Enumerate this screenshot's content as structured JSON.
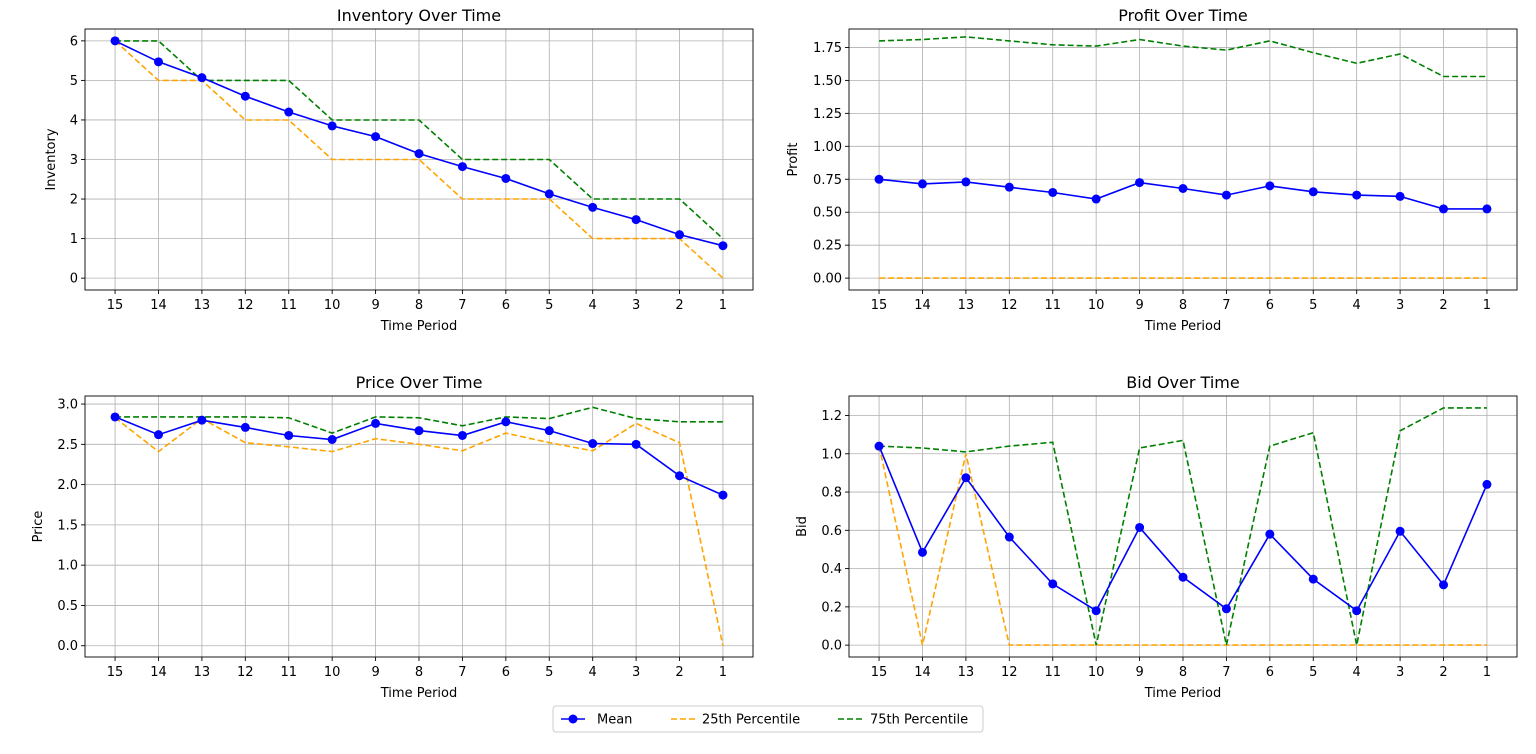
{
  "legend": {
    "placement": "bottom-center",
    "items": [
      {
        "key": "mean",
        "label": "Mean",
        "color": "#0000ff",
        "style": "solid-marker"
      },
      {
        "key": "p25",
        "label": "25th Percentile",
        "color": "#ffa500",
        "style": "dashed"
      },
      {
        "key": "p75",
        "label": "75th Percentile",
        "color": "#008000",
        "style": "dashed"
      }
    ]
  },
  "chart_data": [
    {
      "type": "line",
      "title": "Inventory Over Time",
      "xlabel": "Time Period",
      "ylabel": "Inventory",
      "categories": [
        "15",
        "14",
        "13",
        "12",
        "11",
        "10",
        "9",
        "8",
        "7",
        "6",
        "5",
        "4",
        "3",
        "2",
        "1"
      ],
      "ylim": [
        -0.3,
        6.3
      ],
      "yticks": [
        0,
        1,
        2,
        3,
        4,
        5,
        6
      ],
      "ytick_labels": [
        "0",
        "1",
        "2",
        "3",
        "4",
        "5",
        "6"
      ],
      "grid": true,
      "series": [
        {
          "name": "Mean",
          "key": "mean",
          "values": [
            6.0,
            5.47,
            5.07,
            4.6,
            4.2,
            3.85,
            3.58,
            3.15,
            2.82,
            2.52,
            2.13,
            1.79,
            1.48,
            1.1,
            0.82
          ]
        },
        {
          "name": "25th Percentile",
          "key": "p25",
          "values": [
            6,
            5,
            5,
            4,
            4,
            3,
            3,
            3,
            2,
            2,
            2,
            1,
            1,
            1,
            0
          ]
        },
        {
          "name": "75th Percentile",
          "key": "p75",
          "values": [
            6,
            6,
            5,
            5,
            5,
            4,
            4,
            4,
            3,
            3,
            3,
            2,
            2,
            2,
            1
          ]
        }
      ]
    },
    {
      "type": "line",
      "title": "Profit Over Time",
      "xlabel": "Time Period",
      "ylabel": "Profit",
      "categories": [
        "15",
        "14",
        "13",
        "12",
        "11",
        "10",
        "9",
        "8",
        "7",
        "6",
        "5",
        "4",
        "3",
        "2",
        "1"
      ],
      "ylim": [
        -0.09,
        1.89
      ],
      "yticks": [
        0,
        0.25,
        0.5,
        0.75,
        1.0,
        1.25,
        1.5,
        1.75
      ],
      "ytick_labels": [
        "0.00",
        "0.25",
        "0.50",
        "0.75",
        "1.00",
        "1.25",
        "1.50",
        "1.75"
      ],
      "grid": true,
      "series": [
        {
          "name": "Mean",
          "key": "mean",
          "values": [
            0.75,
            0.715,
            0.73,
            0.69,
            0.65,
            0.6,
            0.725,
            0.68,
            0.63,
            0.7,
            0.655,
            0.63,
            0.62,
            0.525,
            0.525
          ]
        },
        {
          "name": "25th Percentile",
          "key": "p25",
          "values": [
            0,
            0,
            0,
            0,
            0,
            0,
            0,
            0,
            0,
            0,
            0,
            0,
            0,
            0,
            0
          ]
        },
        {
          "name": "75th Percentile",
          "key": "p75",
          "values": [
            1.8,
            1.81,
            1.83,
            1.8,
            1.77,
            1.76,
            1.81,
            1.76,
            1.73,
            1.8,
            1.71,
            1.63,
            1.7,
            1.53,
            1.53
          ]
        }
      ]
    },
    {
      "type": "line",
      "title": "Price Over Time",
      "xlabel": "Time Period",
      "ylabel": "Price",
      "categories": [
        "15",
        "14",
        "13",
        "12",
        "11",
        "10",
        "9",
        "8",
        "7",
        "6",
        "5",
        "4",
        "3",
        "2",
        "1"
      ],
      "ylim": [
        -0.14,
        3.1
      ],
      "yticks": [
        0,
        0.5,
        1.0,
        1.5,
        2.0,
        2.5,
        3.0
      ],
      "ytick_labels": [
        "0.0",
        "0.5",
        "1.0",
        "1.5",
        "2.0",
        "2.5",
        "3.0"
      ],
      "grid": true,
      "series": [
        {
          "name": "Mean",
          "key": "mean",
          "values": [
            2.84,
            2.62,
            2.8,
            2.71,
            2.61,
            2.56,
            2.76,
            2.67,
            2.61,
            2.78,
            2.67,
            2.51,
            2.5,
            2.11,
            1.87
          ]
        },
        {
          "name": "25th Percentile",
          "key": "p25",
          "values": [
            2.83,
            2.41,
            2.82,
            2.52,
            2.47,
            2.41,
            2.57,
            2.5,
            2.42,
            2.64,
            2.52,
            2.42,
            2.76,
            2.52,
            0.0
          ]
        },
        {
          "name": "75th Percentile",
          "key": "p75",
          "values": [
            2.84,
            2.84,
            2.84,
            2.84,
            2.83,
            2.64,
            2.84,
            2.83,
            2.73,
            2.84,
            2.82,
            2.96,
            2.82,
            2.78,
            2.78
          ]
        }
      ]
    },
    {
      "type": "line",
      "title": "Bid Over Time",
      "xlabel": "Time Period",
      "ylabel": "Bid",
      "categories": [
        "15",
        "14",
        "13",
        "12",
        "11",
        "10",
        "9",
        "8",
        "7",
        "6",
        "5",
        "4",
        "3",
        "2",
        "1"
      ],
      "ylim": [
        -0.062,
        1.302
      ],
      "yticks": [
        0,
        0.2,
        0.4,
        0.6,
        0.8,
        1.0,
        1.2
      ],
      "ytick_labels": [
        "0.0",
        "0.2",
        "0.4",
        "0.6",
        "0.8",
        "1.0",
        "1.2"
      ],
      "grid": true,
      "series": [
        {
          "name": "Mean",
          "key": "mean",
          "values": [
            1.04,
            0.485,
            0.875,
            0.565,
            0.32,
            0.18,
            0.615,
            0.355,
            0.19,
            0.58,
            0.345,
            0.18,
            0.595,
            0.315,
            0.84
          ]
        },
        {
          "name": "25th Percentile",
          "key": "p25",
          "values": [
            1.04,
            0,
            1.0,
            0,
            0,
            0,
            0,
            0,
            0,
            0,
            0,
            0,
            0,
            0,
            0
          ]
        },
        {
          "name": "75th Percentile",
          "key": "p75",
          "values": [
            1.04,
            1.03,
            1.01,
            1.04,
            1.06,
            0,
            1.03,
            1.07,
            0,
            1.04,
            1.11,
            0,
            1.12,
            1.24,
            1.24
          ]
        }
      ]
    }
  ]
}
